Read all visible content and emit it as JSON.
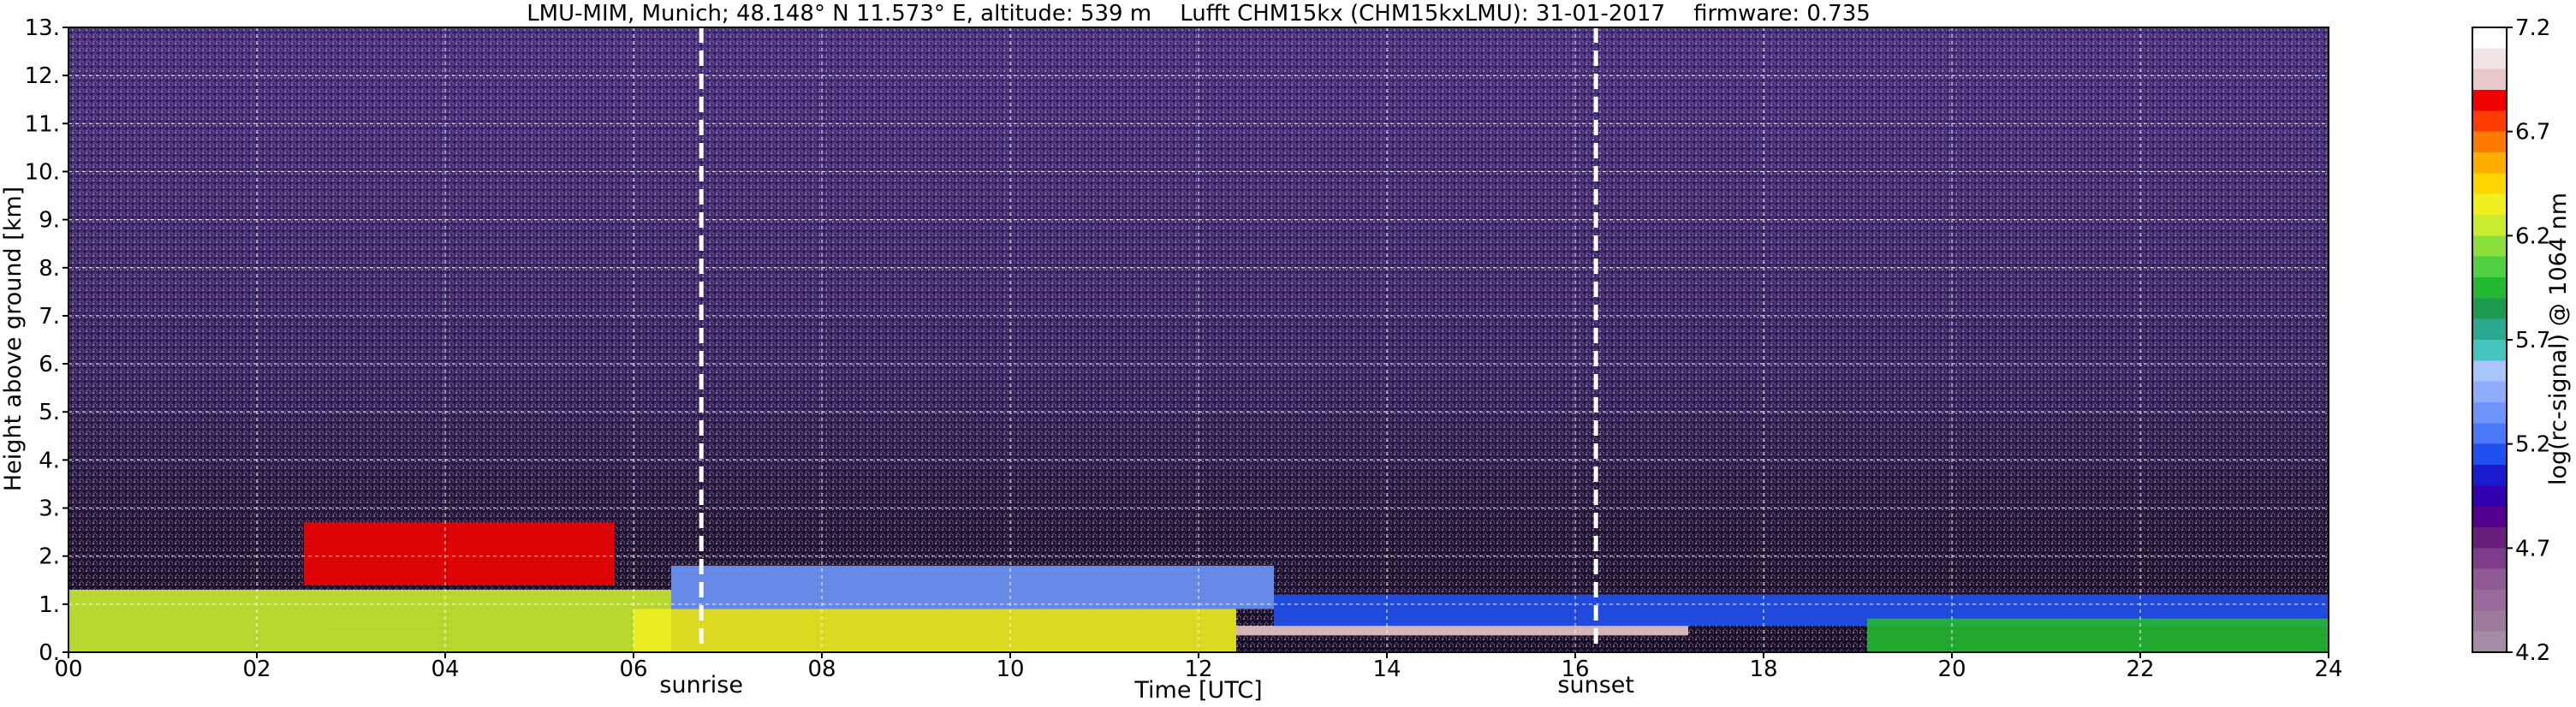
{
  "chart_data": {
    "type": "heatmap",
    "title": "LMU-MIM, Munich; 48.148° N 11.573° E, altitude: 539 m    Lufft CHM15kx (CHM15kxLMU): 31-01-2017    firmware: 0.735",
    "xlabel": "Time [UTC]",
    "ylabel": "Height above ground [km]",
    "xlim": [
      0,
      24
    ],
    "ylim": [
      0,
      13
    ],
    "x_ticks": [
      "00",
      "02",
      "04",
      "06",
      "08",
      "10",
      "12",
      "14",
      "16",
      "18",
      "20",
      "22",
      "24"
    ],
    "y_ticks": [
      "0.",
      "1.",
      "2.",
      "3.",
      "4.",
      "5.",
      "6.",
      "7.",
      "8.",
      "9.",
      "10.",
      "11.",
      "12.",
      "13."
    ],
    "grid": true,
    "event_lines": [
      {
        "label": "sunrise",
        "time": 6.72
      },
      {
        "label": "sunset",
        "time": 16.22
      }
    ],
    "colorbar": {
      "label": "log(rc-signal) @ 1064 nm",
      "min": 4.2,
      "max": 7.2,
      "ticks": [
        "4.2",
        "4.7",
        "5.2",
        "5.7",
        "6.2",
        "6.7",
        "7.2"
      ],
      "colors": [
        "#a68ca6",
        "#9e7a9e",
        "#9a6a9a",
        "#8f5a96",
        "#7e3c8c",
        "#6a1e7c",
        "#53008f",
        "#3300b0",
        "#1a1ad0",
        "#2050f0",
        "#4a78f8",
        "#6e96fa",
        "#8eaefc",
        "#a9c6fc",
        "#46c4c0",
        "#2aa890",
        "#1e9a50",
        "#23b830",
        "#50d040",
        "#8ce03c",
        "#c8ec30",
        "#f0f020",
        "#ffd600",
        "#ffae00",
        "#ff7a00",
        "#ff3c00",
        "#f00000",
        "#e8c8c8",
        "#f2e4e4",
        "#ffffff"
      ]
    },
    "layers": [
      {
        "t0": 0.0,
        "t1": 6.4,
        "h0": 0.0,
        "h1": 1.3,
        "level": 6.3
      },
      {
        "t0": 2.5,
        "t1": 5.8,
        "h0": 1.4,
        "h1": 2.7,
        "level": 6.9
      },
      {
        "t0": 6.0,
        "t1": 12.4,
        "h0": 0.0,
        "h1": 0.9,
        "level": 6.4
      },
      {
        "t0": 6.4,
        "t1": 12.8,
        "h0": 0.9,
        "h1": 1.8,
        "level": 5.3
      },
      {
        "t0": 12.4,
        "t1": 17.2,
        "h0": 0.35,
        "h1": 0.55,
        "level": 7.0
      },
      {
        "t0": 12.8,
        "t1": 24.0,
        "h0": 0.55,
        "h1": 1.2,
        "level": 5.1
      },
      {
        "t0": 19.1,
        "t1": 24.0,
        "h0": 0.0,
        "h1": 0.7,
        "level": 6.0
      }
    ]
  }
}
